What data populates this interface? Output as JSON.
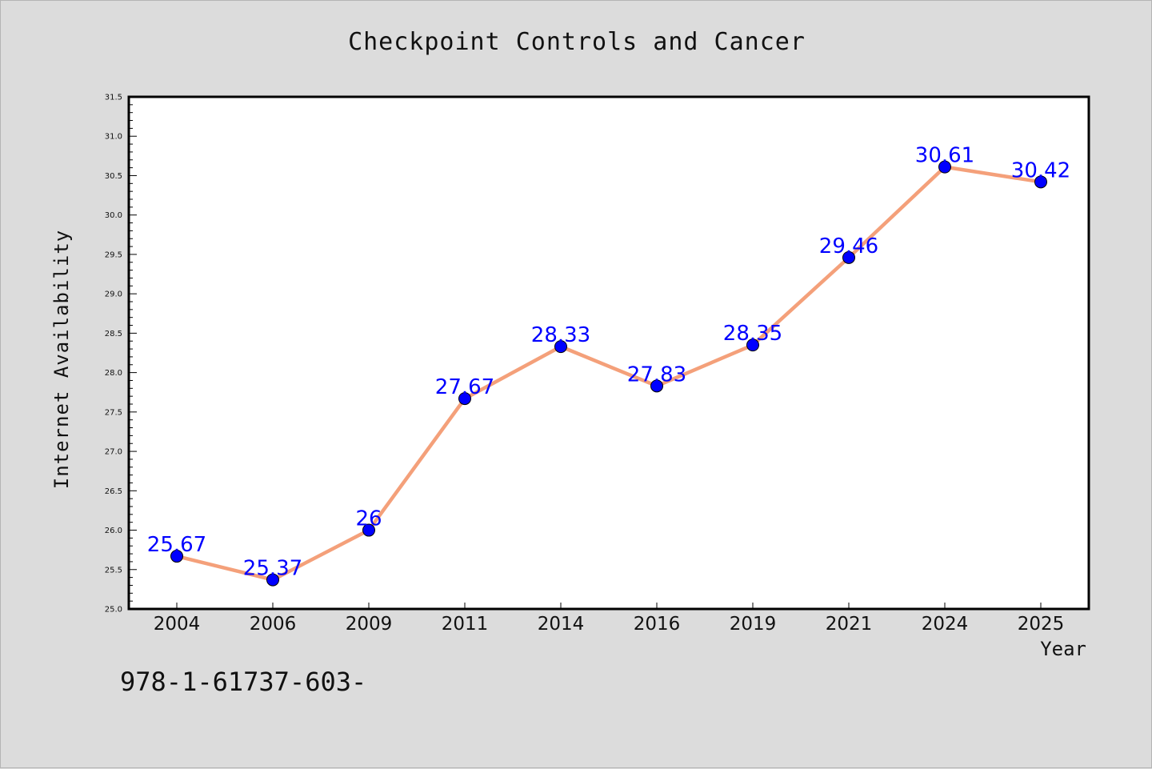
{
  "chart_data": {
    "type": "line",
    "title": "Checkpoint Controls and Cancer",
    "xlabel": "Year",
    "ylabel": "Internet Availability",
    "categories": [
      "2004",
      "2006",
      "2009",
      "2011",
      "2014",
      "2016",
      "2019",
      "2021",
      "2024",
      "2025"
    ],
    "values": [
      25.67,
      25.37,
      26,
      27.67,
      28.33,
      27.83,
      28.35,
      29.46,
      30.61,
      30.42
    ],
    "labels": [
      "25.67",
      "25.37",
      "26",
      "27.67",
      "28.33",
      "27.83",
      "28.35",
      "29.46",
      "30.61",
      "30.42"
    ],
    "ylim": [
      25.0,
      31.5
    ],
    "yticks": [
      "25.0",
      "25.5",
      "26.0",
      "26.5",
      "27.0",
      "27.5",
      "28.0",
      "28.5",
      "29.0",
      "29.5",
      "30.0",
      "30.5",
      "31.0",
      "31.5"
    ],
    "grid": false,
    "colors": {
      "line": "#f4a07a",
      "marker": "#0000ff",
      "data_label": "#0000ff",
      "plot_background": "#ffffff",
      "figure_background": "#dcdcdc"
    }
  },
  "footer": {
    "code": "978-1-61737-603-"
  }
}
